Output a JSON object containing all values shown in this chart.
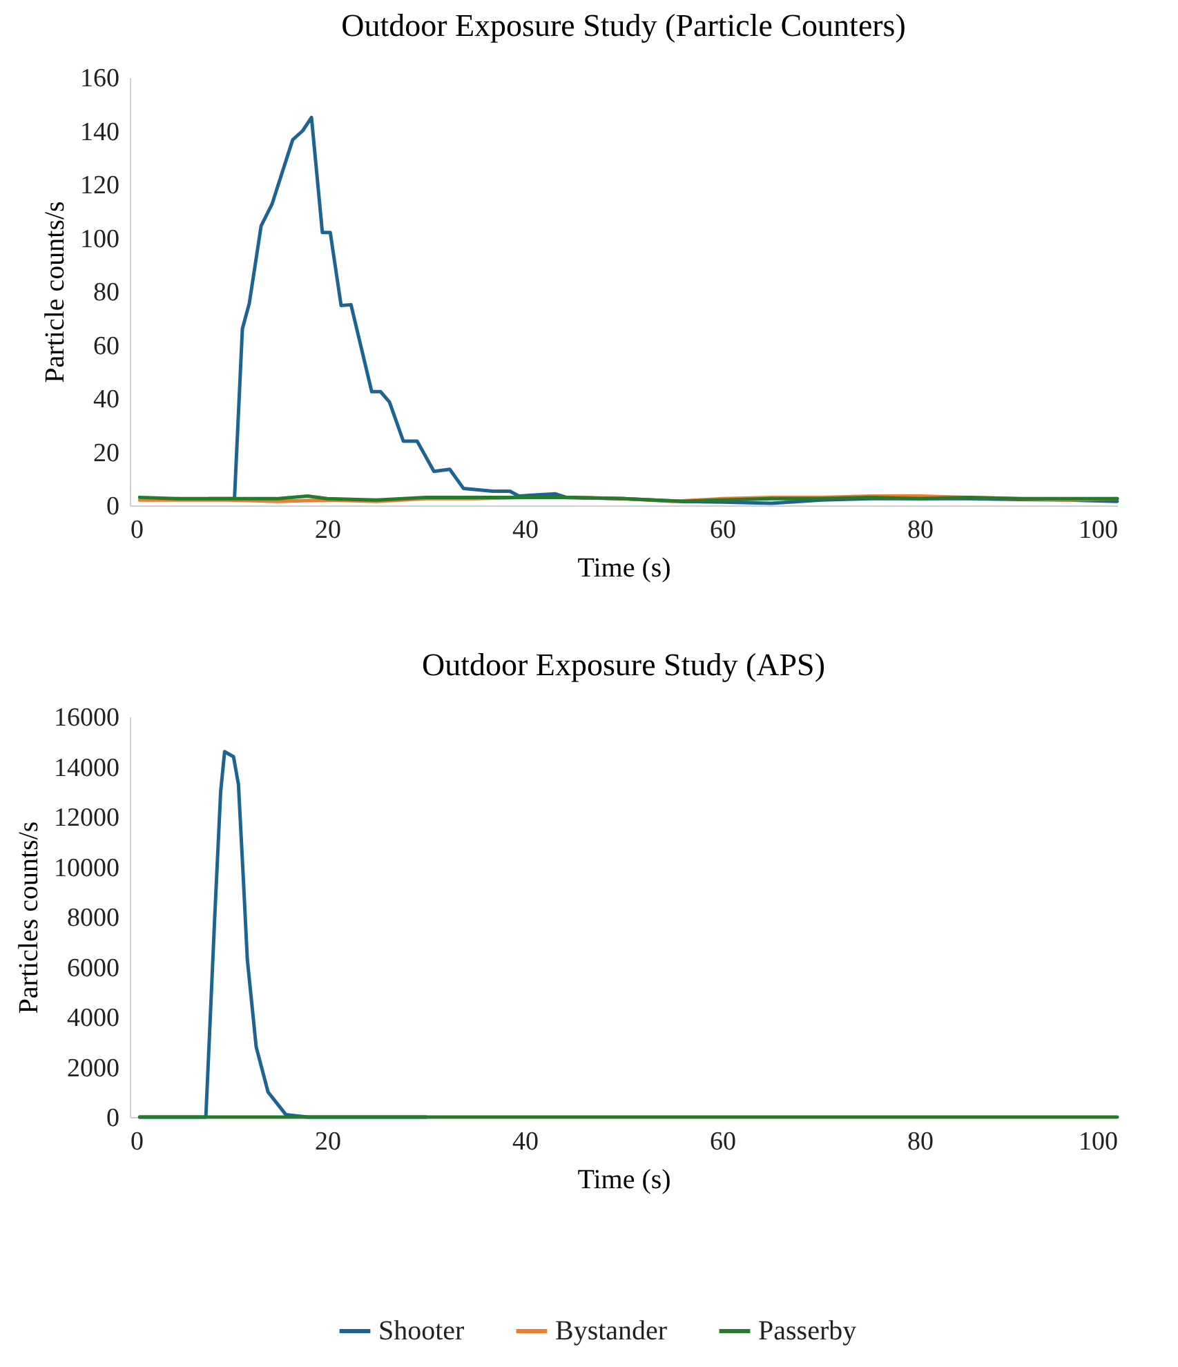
{
  "chart_data": [
    {
      "type": "line",
      "title": "Outdoor Exposure Study (Particle Counters)",
      "xlabel": "Time (s)",
      "ylabel": "Particle counts/s",
      "xlim": [
        0,
        100
      ],
      "xticks": [
        0,
        20,
        40,
        60,
        80,
        100
      ],
      "ylim": [
        0,
        160
      ],
      "yticks": [
        0,
        20,
        40,
        60,
        80,
        100,
        120,
        140,
        160
      ],
      "grid": false,
      "legend": "bottom",
      "line_style": "solid",
      "marker": "none",
      "series": [
        {
          "name": "Shooter",
          "color": "#1f6391",
          "x": [
            8,
            10.6,
            11.4,
            12.1,
            13.3,
            14.4,
            16.5,
            17.5,
            18.4,
            19.5,
            20.3,
            21.4,
            22.4,
            24.5,
            25.4,
            26.3,
            27.7,
            29.1,
            30.8,
            32.4,
            33.8,
            36.8,
            38.5,
            39.4,
            43.1,
            44.3,
            50,
            56,
            60,
            65,
            70,
            75,
            80,
            85,
            90,
            95,
            100
          ],
          "values": [
            2.5,
            2.5,
            66,
            75.5,
            104.5,
            112.6,
            136.7,
            140,
            145,
            102,
            102,
            74.7,
            75,
            42.5,
            42.5,
            38.6,
            24,
            24,
            12.7,
            13.5,
            6.3,
            5.3,
            5.3,
            3.5,
            4.3,
            2.9,
            2.5,
            1.5,
            1.2,
            0.8,
            2,
            2.5,
            2.5,
            2.5,
            2.2,
            2,
            1.5
          ]
        },
        {
          "name": "Bystander",
          "color": "#ed7d31",
          "x": [
            1,
            5,
            10,
            15,
            20,
            25,
            30,
            35,
            40,
            45,
            50,
            55,
            60,
            65,
            70,
            75,
            80,
            85,
            90,
            95,
            100
          ],
          "values": [
            2,
            2,
            2,
            1.5,
            2,
            1.5,
            2.5,
            2.5,
            3,
            3,
            2.5,
            1.5,
            2.5,
            3,
            3,
            3.5,
            3.5,
            3,
            2.5,
            2,
            2.5
          ]
        },
        {
          "name": "Passerby",
          "color": "#267a2b",
          "x": [
            1,
            5,
            10,
            15,
            18,
            20,
            25,
            30,
            35,
            40,
            45,
            50,
            56,
            60,
            65,
            70,
            75,
            80,
            85,
            90,
            95,
            100
          ],
          "values": [
            3,
            2.5,
            2.5,
            2.5,
            3.5,
            2.5,
            2,
            3,
            3,
            3,
            3,
            2.5,
            1.5,
            2,
            2.5,
            2.5,
            3,
            2.5,
            3,
            2.5,
            2.5,
            2.5
          ]
        }
      ]
    },
    {
      "type": "line",
      "title": "Outdoor Exposure Study (APS)",
      "xlabel": "Time (s)",
      "ylabel": "Particles counts/s",
      "xlim": [
        0,
        100
      ],
      "xticks": [
        0,
        20,
        40,
        60,
        80,
        100
      ],
      "ylim": [
        0,
        16000
      ],
      "yticks": [
        0,
        2000,
        4000,
        6000,
        8000,
        10000,
        12000,
        14000,
        16000
      ],
      "grid": false,
      "legend": "bottom",
      "line_style": "solid",
      "marker": "none",
      "series": [
        {
          "name": "Shooter",
          "color": "#1f6391",
          "x": [
            1,
            5,
            7.7,
            8.6,
            9.2,
            9.6,
            10.5,
            11,
            11.5,
            11.9,
            12.8,
            14,
            15.8,
            18,
            30
          ],
          "values": [
            0,
            0,
            0,
            8000,
            13000,
            14600,
            14400,
            13300,
            9500,
            6300,
            2800,
            1000,
            100,
            0,
            0
          ]
        },
        {
          "name": "Bystander",
          "color": "#ed7d31"
        },
        {
          "name": "Passerby",
          "color": "#267a2b",
          "x": [
            1,
            20,
            40,
            60,
            80,
            100
          ],
          "values": [
            0,
            0,
            0,
            0,
            0,
            0
          ]
        }
      ]
    }
  ]
}
